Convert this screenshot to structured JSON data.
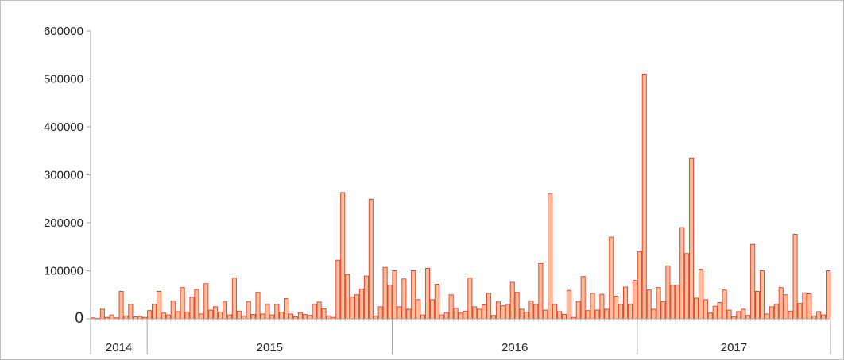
{
  "chart_data": {
    "type": "bar",
    "title": "",
    "xlabel": "",
    "ylabel": "",
    "ylim": [
      0,
      600000
    ],
    "yticks": [
      "0",
      "100000",
      "200000",
      "300000",
      "400000",
      "500000",
      "600000"
    ],
    "ytick_values": [
      0,
      100000,
      200000,
      300000,
      400000,
      500000,
      600000
    ],
    "grid": false,
    "legend": "none",
    "bar_fill": "#fbbf9e",
    "bar_stroke": "#e8462a",
    "axis_color": "#a6a6a6",
    "year_groups": [
      {
        "label": "2014",
        "bars": 12
      },
      {
        "label": "2015",
        "bars": 52
      },
      {
        "label": "2016",
        "bars": 52
      },
      {
        "label": "2017",
        "bars": 41
      }
    ],
    "values": [
      2000,
      0,
      20000,
      3000,
      8000,
      2000,
      57000,
      6000,
      30000,
      4000,
      5000,
      3000,
      17000,
      30000,
      57000,
      12000,
      8000,
      37000,
      15000,
      65000,
      14000,
      45000,
      61000,
      10000,
      73000,
      18000,
      25000,
      14000,
      35000,
      8000,
      85000,
      16000,
      6000,
      36000,
      9000,
      55000,
      10000,
      30000,
      8000,
      30000,
      14000,
      42000,
      10000,
      4000,
      13000,
      9000,
      7000,
      30000,
      35000,
      21000,
      6000,
      3000,
      122000,
      263000,
      92000,
      45000,
      50000,
      62000,
      89000,
      249000,
      6000,
      25000,
      107000,
      70000,
      100000,
      25000,
      83000,
      20000,
      100000,
      40000,
      8000,
      105000,
      40000,
      72000,
      8000,
      13000,
      50000,
      22000,
      12000,
      16000,
      85000,
      25000,
      20000,
      29000,
      53000,
      7000,
      35000,
      27000,
      30000,
      76000,
      55000,
      20000,
      14000,
      37000,
      30000,
      115000,
      18000,
      261000,
      30000,
      15000,
      9000,
      59000,
      3000,
      36000,
      88000,
      17000,
      53000,
      18000,
      51000,
      20000,
      170000,
      47000,
      30000,
      66000,
      30000,
      80000,
      140000,
      510000,
      60000,
      20000,
      65000,
      36000,
      110000,
      70000,
      70000,
      190000,
      136000,
      335000,
      43000,
      103000,
      40000,
      12000,
      26000,
      34000,
      60000,
      18000,
      4000,
      15000,
      20000,
      7000,
      155000,
      57000,
      100000,
      10000,
      25000,
      30000,
      65000,
      50000,
      16000,
      176000,
      32000,
      54000,
      52000,
      6000,
      15000,
      8000,
      100000
    ]
  }
}
